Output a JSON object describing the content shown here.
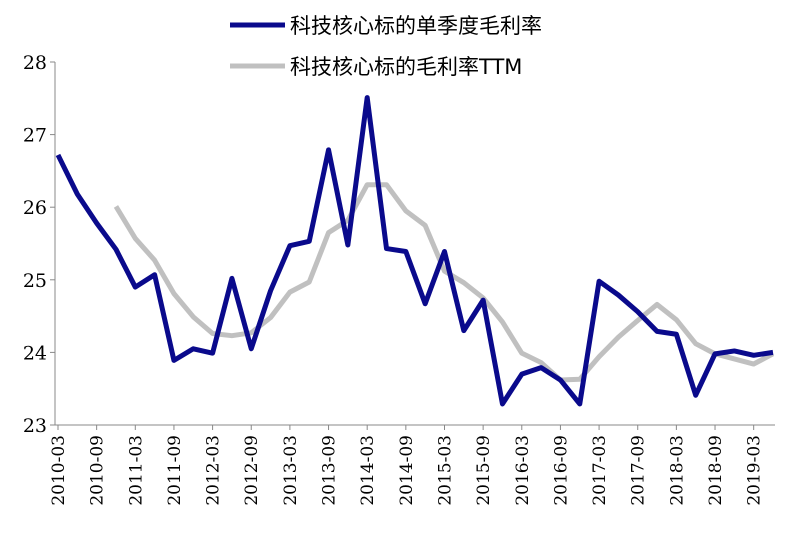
{
  "chart_data": {
    "type": "line",
    "title": "",
    "xlabel": "",
    "ylabel": "",
    "ylim": [
      23,
      28
    ],
    "yticks": [
      23,
      24,
      25,
      26,
      27,
      28
    ],
    "grid": false,
    "legend_position": "top",
    "x": [
      "2010-03",
      "2010-06",
      "2010-09",
      "2010-12",
      "2011-03",
      "2011-06",
      "2011-09",
      "2011-12",
      "2012-03",
      "2012-06",
      "2012-09",
      "2012-12",
      "2013-03",
      "2013-06",
      "2013-09",
      "2013-12",
      "2014-03",
      "2014-06",
      "2014-09",
      "2014-12",
      "2015-03",
      "2015-06",
      "2015-09",
      "2015-12",
      "2016-03",
      "2016-06",
      "2016-09",
      "2016-12",
      "2017-03",
      "2017-06",
      "2017-09",
      "2017-12",
      "2018-03",
      "2018-06",
      "2018-09",
      "2018-12",
      "2019-03",
      "2019-06"
    ],
    "x_tick_labels": [
      "2010-03",
      "2010-09",
      "2011-03",
      "2011-09",
      "2012-03",
      "2012-09",
      "2013-03",
      "2013-09",
      "2014-03",
      "2014-09",
      "2015-03",
      "2015-09",
      "2016-03",
      "2016-09",
      "2017-03",
      "2017-09",
      "2018-03",
      "2018-09",
      "2019-03"
    ],
    "series": [
      {
        "name": "科技核心标的单季度毛利率",
        "color": "#0a0a8c",
        "values": [
          26.72,
          26.18,
          25.78,
          25.42,
          24.9,
          25.07,
          23.89,
          24.05,
          23.99,
          25.02,
          24.05,
          24.85,
          25.47,
          25.53,
          26.79,
          25.48,
          27.51,
          25.43,
          25.39,
          24.67,
          25.39,
          24.3,
          24.72,
          23.29,
          23.7,
          23.79,
          23.62,
          23.29,
          24.98,
          24.79,
          24.56,
          24.29,
          24.25,
          23.41,
          23.98,
          24.02,
          23.96,
          24.0
        ]
      },
      {
        "name": "科技核心标的毛利率TTM",
        "color": "#c0c0c0",
        "values": [
          null,
          null,
          null,
          26.01,
          25.57,
          25.27,
          24.81,
          24.49,
          24.26,
          24.23,
          24.27,
          24.48,
          24.83,
          24.97,
          25.65,
          25.82,
          26.31,
          26.31,
          25.95,
          25.75,
          25.12,
          24.96,
          24.75,
          24.42,
          23.99,
          23.86,
          23.62,
          23.63,
          23.94,
          24.21,
          24.44,
          24.66,
          24.45,
          24.12,
          23.98,
          23.91,
          23.84,
          23.98
        ]
      }
    ]
  }
}
